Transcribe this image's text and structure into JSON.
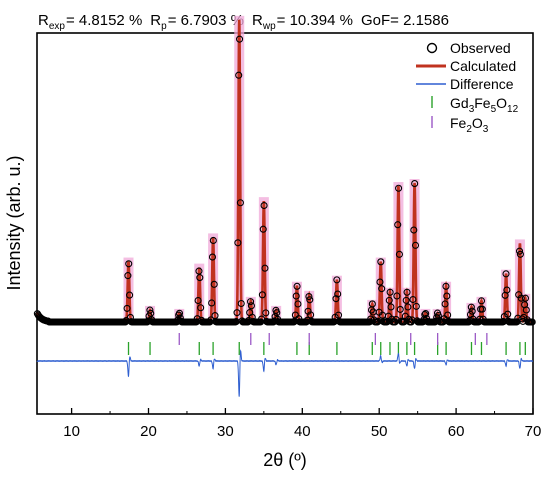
{
  "chart_data": {
    "type": "line",
    "title_parts": [
      {
        "base": "R",
        "sub": "exp",
        "value": "= 4.8152 %"
      },
      {
        "base": "R",
        "sub": "p",
        "value": "= 6.7903 %"
      },
      {
        "base": "R",
        "sub": "wp",
        "value": "= 10.394 %"
      },
      {
        "base": "GoF",
        "sub": "",
        "value": "= 2.1586"
      }
    ],
    "xlabel": "2θ (º)",
    "ylabel": "Intensity (arb. u.)",
    "xlim": [
      5.5,
      70
    ],
    "ylim": [
      0,
      100
    ],
    "xticks": [
      10,
      20,
      30,
      40,
      50,
      60,
      70
    ],
    "legend": {
      "position": "top-right",
      "observed": "Observed",
      "calculated": "Calculated",
      "difference": "Difference",
      "gd_base": "Gd",
      "gd_s1": "3",
      "gd_mid": "Fe",
      "gd_s2": "5",
      "gd_o": "O",
      "gd_s3": "12",
      "fe_base": "Fe",
      "fe_s1": "2",
      "fe_o": "O",
      "fe_s2": "3"
    },
    "colors": {
      "observed": "#000000",
      "calculated": "#c0321f",
      "difference": "#2f5fd0",
      "gd_ticks": "#2aa22a",
      "fe_ticks": "#9b59c6",
      "highlight": "#f0a8d8"
    },
    "baseline": 8,
    "peaks": [
      {
        "x": 17.4,
        "h": 20
      },
      {
        "x": 20.2,
        "h": 4
      },
      {
        "x": 24.0,
        "h": 3
      },
      {
        "x": 26.6,
        "h": 18
      },
      {
        "x": 28.4,
        "h": 28
      },
      {
        "x": 31.8,
        "h": 100
      },
      {
        "x": 33.3,
        "h": 7
      },
      {
        "x": 35.0,
        "h": 40
      },
      {
        "x": 36.6,
        "h": 4
      },
      {
        "x": 39.3,
        "h": 12
      },
      {
        "x": 40.9,
        "h": 9
      },
      {
        "x": 44.5,
        "h": 14
      },
      {
        "x": 49.1,
        "h": 6
      },
      {
        "x": 50.2,
        "h": 20
      },
      {
        "x": 51.4,
        "h": 10
      },
      {
        "x": 52.5,
        "h": 45
      },
      {
        "x": 53.6,
        "h": 10
      },
      {
        "x": 54.6,
        "h": 46
      },
      {
        "x": 56.0,
        "h": 3
      },
      {
        "x": 57.6,
        "h": 3
      },
      {
        "x": 58.7,
        "h": 12
      },
      {
        "x": 62.0,
        "h": 5
      },
      {
        "x": 63.3,
        "h": 7
      },
      {
        "x": 66.5,
        "h": 16
      },
      {
        "x": 68.3,
        "h": 26
      },
      {
        "x": 69.0,
        "h": 8
      }
    ],
    "gd_tick_positions": [
      17.4,
      20.2,
      26.6,
      28.4,
      31.8,
      35.0,
      39.3,
      40.9,
      44.5,
      49.1,
      50.2,
      51.4,
      52.5,
      53.6,
      54.6,
      57.6,
      58.7,
      62.0,
      63.3,
      66.5,
      68.3,
      69.0
    ],
    "fe_tick_positions": [
      24.0,
      33.3,
      35.7,
      40.9,
      49.5,
      54.1,
      57.6,
      62.5,
      64.0
    ],
    "difference_features": [
      {
        "x": 17.4,
        "d": -12
      },
      {
        "x": 26.6,
        "d": -4
      },
      {
        "x": 28.4,
        "d": -6
      },
      {
        "x": 31.8,
        "d": -28
      },
      {
        "x": 35.0,
        "d": -8
      },
      {
        "x": 36.6,
        "d": -3
      },
      {
        "x": 50.2,
        "d": 4
      },
      {
        "x": 52.5,
        "d": 6
      },
      {
        "x": 53.6,
        "d": -4
      },
      {
        "x": 54.6,
        "d": -6
      },
      {
        "x": 58.7,
        "d": -3
      },
      {
        "x": 66.5,
        "d": -4
      },
      {
        "x": 68.3,
        "d": -6
      }
    ]
  }
}
